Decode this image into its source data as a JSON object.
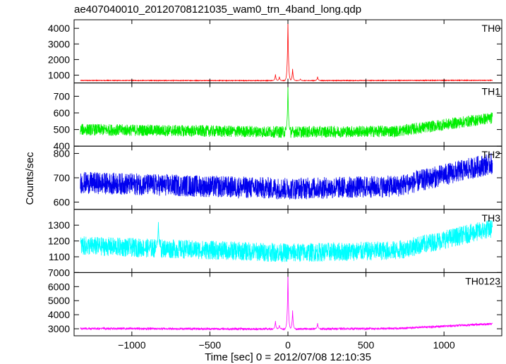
{
  "title": "ae407040010_20120708121035_wam0_trn_4band_long.qdp",
  "ylabel": "Counts/sec",
  "xlabel": "Time [sec] 0 = 2012/07/08 12:10:35",
  "chart_data": {
    "type": "line",
    "title": "ae407040010_20120708121035_wam0_trn_4band_long.qdp",
    "xlabel": "Time [sec] 0 = 2012/07/08 12:10:35",
    "ylabel": "Counts/sec",
    "xlim": [
      -1370,
      1370
    ],
    "x_ticks": [
      -1000,
      -500,
      0,
      500,
      1000
    ],
    "x_tick_labels": [
      "−1000",
      "−500",
      "0",
      "500",
      "1000"
    ],
    "x_range": [
      -1330,
      1310
    ],
    "panels": [
      {
        "name": "TH0",
        "color": "#ff0000",
        "ylim": [
          500,
          4550
        ],
        "y_ticks": [
          1000,
          2000,
          3000,
          4000
        ],
        "baseline": [
          [
            -1330,
            660
          ],
          [
            0,
            650
          ],
          [
            1310,
            670
          ]
        ],
        "noise": 20,
        "events": [
          [
            -80,
            1050
          ],
          [
            -55,
            900
          ],
          [
            0,
            4550
          ],
          [
            30,
            1400
          ],
          [
            80,
            750
          ],
          [
            190,
            900
          ]
        ]
      },
      {
        "name": "TH1",
        "color": "#00ee00",
        "ylim": [
          400,
          780
        ],
        "y_ticks": [
          400,
          500,
          600,
          700
        ],
        "baseline": [
          [
            -1330,
            500
          ],
          [
            0,
            485
          ],
          [
            700,
            490
          ],
          [
            1310,
            570
          ]
        ],
        "noise": 35,
        "events": [
          [
            0,
            770
          ]
        ]
      },
      {
        "name": "TH2",
        "color": "#0000ee",
        "ylim": [
          570,
          830
        ],
        "y_ticks": [
          600,
          700,
          800
        ],
        "baseline": [
          [
            -1330,
            680
          ],
          [
            0,
            655
          ],
          [
            700,
            665
          ],
          [
            1310,
            760
          ]
        ],
        "noise": 45,
        "events": []
      },
      {
        "name": "TH3",
        "color": "#00ffff",
        "ylim": [
          1000,
          1400
        ],
        "y_ticks": [
          1000,
          1100,
          1200,
          1300
        ],
        "y_tick_labels": [
          "",
          "1100",
          "1200",
          "1300"
        ],
        "baseline": [
          [
            -1330,
            1170
          ],
          [
            0,
            1125
          ],
          [
            700,
            1140
          ],
          [
            1310,
            1280
          ]
        ],
        "noise": 60,
        "events": [
          [
            -830,
            1320
          ]
        ]
      },
      {
        "name": "TH0123",
        "color": "#ff00ff",
        "ylim": [
          2500,
          7000
        ],
        "y_ticks": [
          3000,
          4000,
          5000,
          6000,
          7000
        ],
        "baseline": [
          [
            -1330,
            3020
          ],
          [
            0,
            2980
          ],
          [
            700,
            3020
          ],
          [
            1310,
            3350
          ]
        ],
        "noise": 70,
        "events": [
          [
            -80,
            3550
          ],
          [
            -55,
            3250
          ],
          [
            0,
            7000
          ],
          [
            30,
            4300
          ],
          [
            190,
            3400
          ]
        ]
      }
    ]
  }
}
